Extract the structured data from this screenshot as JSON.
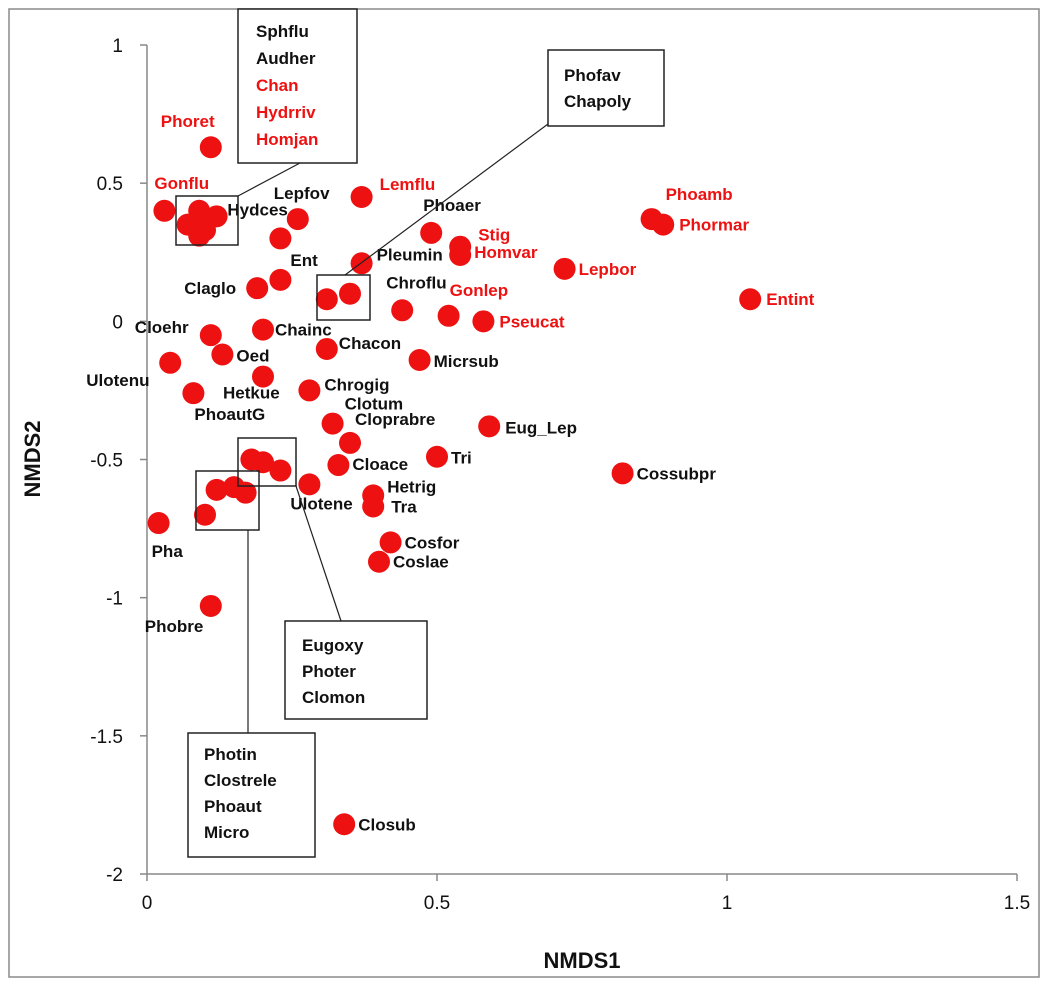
{
  "colors": {
    "point": "#ee1111",
    "label_red": "#ee1111",
    "label_black": "#111111"
  },
  "chart_data": {
    "type": "scatter",
    "xlabel": "NMDS1",
    "ylabel": "NMDS2",
    "xlim": [
      0,
      1.5
    ],
    "ylim": [
      -2,
      1
    ],
    "x_ticks": [
      0,
      0.5,
      1,
      1.5
    ],
    "y_ticks": [
      -2,
      -1.5,
      -1,
      -0.5,
      0,
      0.5,
      1
    ],
    "x_tick_labels": [
      "0",
      "0.5",
      "1",
      "1.5"
    ],
    "y_tick_labels": [
      "-2",
      "-1.5",
      "-1",
      "-0.5",
      "0",
      "0.5",
      "1"
    ],
    "grid": false,
    "points": [
      {
        "label": "Phoret",
        "x": 0.11,
        "y": 0.63,
        "red": true
      },
      {
        "label": "Gonflu",
        "x": 0.03,
        "y": 0.4,
        "red": true
      },
      {
        "label": "",
        "x": 0.09,
        "y": 0.4
      },
      {
        "label": "",
        "x": 0.12,
        "y": 0.38
      },
      {
        "label": "",
        "x": 0.07,
        "y": 0.35
      },
      {
        "label": "",
        "x": 0.1,
        "y": 0.33
      },
      {
        "label": "",
        "x": 0.09,
        "y": 0.31
      },
      {
        "label": "Lemflu",
        "x": 0.37,
        "y": 0.45,
        "red": true
      },
      {
        "label": "Lepfov",
        "x": 0.26,
        "y": 0.37
      },
      {
        "label": "Hydces",
        "x": 0.23,
        "y": 0.3
      },
      {
        "label": "Ent",
        "x": 0.23,
        "y": 0.15
      },
      {
        "label": "Claglo",
        "x": 0.19,
        "y": 0.12
      },
      {
        "label": "Phoaer",
        "x": 0.49,
        "y": 0.32
      },
      {
        "label": "Stig",
        "x": 0.54,
        "y": 0.27,
        "red": true
      },
      {
        "label": "Homvar",
        "x": 0.54,
        "y": 0.24,
        "red": true
      },
      {
        "label": "Pleumin",
        "x": 0.37,
        "y": 0.21
      },
      {
        "label": "",
        "x": 0.31,
        "y": 0.08
      },
      {
        "label": "",
        "x": 0.35,
        "y": 0.1
      },
      {
        "label": "Chroflu",
        "x": 0.44,
        "y": 0.04
      },
      {
        "label": "Gonlep",
        "x": 0.52,
        "y": 0.02,
        "red": true
      },
      {
        "label": "Pseucat",
        "x": 0.58,
        "y": 0.0,
        "red": true
      },
      {
        "label": "Phoamb",
        "x": 0.87,
        "y": 0.37,
        "red": true
      },
      {
        "label": "Phormar",
        "x": 0.89,
        "y": 0.35,
        "red": true
      },
      {
        "label": "Lepbor",
        "x": 0.72,
        "y": 0.19,
        "red": true
      },
      {
        "label": "Entint",
        "x": 1.04,
        "y": 0.08,
        "red": true
      },
      {
        "label": "Cloehr",
        "x": 0.11,
        "y": -0.05
      },
      {
        "label": "Chainc",
        "x": 0.2,
        "y": -0.03
      },
      {
        "label": "Oed",
        "x": 0.13,
        "y": -0.12
      },
      {
        "label": "Chacon",
        "x": 0.31,
        "y": -0.1
      },
      {
        "label": "Ulotenu",
        "x": 0.04,
        "y": -0.15
      },
      {
        "label": "Micrsub",
        "x": 0.47,
        "y": -0.14
      },
      {
        "label": "Hetkue",
        "x": 0.2,
        "y": -0.2
      },
      {
        "label": "PhoautG",
        "x": 0.08,
        "y": -0.26
      },
      {
        "label": "Chrogig",
        "x": 0.28,
        "y": -0.25
      },
      {
        "label": "Clotum",
        "x": 0.32,
        "y": -0.37
      },
      {
        "label": "Eug_Lep",
        "x": 0.59,
        "y": -0.38
      },
      {
        "label": "Cloprabre",
        "x": 0.35,
        "y": -0.44
      },
      {
        "label": "Tri",
        "x": 0.5,
        "y": -0.49
      },
      {
        "label": "Cloace",
        "x": 0.33,
        "y": -0.52
      },
      {
        "label": "Cossubpr",
        "x": 0.82,
        "y": -0.55
      },
      {
        "label": "",
        "x": 0.18,
        "y": -0.5
      },
      {
        "label": "",
        "x": 0.2,
        "y": -0.51
      },
      {
        "label": "",
        "x": 0.23,
        "y": -0.54
      },
      {
        "label": "Ulotene",
        "x": 0.28,
        "y": -0.59
      },
      {
        "label": "Hetrig",
        "x": 0.39,
        "y": -0.63
      },
      {
        "label": "Tra",
        "x": 0.39,
        "y": -0.67
      },
      {
        "label": "",
        "x": 0.12,
        "y": -0.61
      },
      {
        "label": "",
        "x": 0.15,
        "y": -0.6
      },
      {
        "label": "",
        "x": 0.17,
        "y": -0.62
      },
      {
        "label": "",
        "x": 0.1,
        "y": -0.7
      },
      {
        "label": "Pha",
        "x": 0.02,
        "y": -0.73
      },
      {
        "label": "Cosfor",
        "x": 0.42,
        "y": -0.8
      },
      {
        "label": "Coslae",
        "x": 0.4,
        "y": -0.87
      },
      {
        "label": "Phobre",
        "x": 0.11,
        "y": -1.03
      },
      {
        "label": "Closub",
        "x": 0.34,
        "y": -1.82
      }
    ],
    "annotations": [
      {
        "lines": [
          {
            "text": "Sphflu"
          },
          {
            "text": "Audher"
          },
          {
            "text": "Chan",
            "red": true
          },
          {
            "text": "Hydrriv",
            "red": true
          },
          {
            "text": "Homjan",
            "red": true
          }
        ]
      },
      {
        "lines": [
          {
            "text": "Phofav"
          },
          {
            "text": "Chapoly"
          }
        ]
      },
      {
        "lines": [
          {
            "text": "Eugoxy"
          },
          {
            "text": "Photer"
          },
          {
            "text": "Clomon"
          }
        ]
      },
      {
        "lines": [
          {
            "text": "Photin"
          },
          {
            "text": "Clostrele"
          },
          {
            "text": "Phoaut"
          },
          {
            "text": "Micro"
          }
        ]
      }
    ]
  }
}
